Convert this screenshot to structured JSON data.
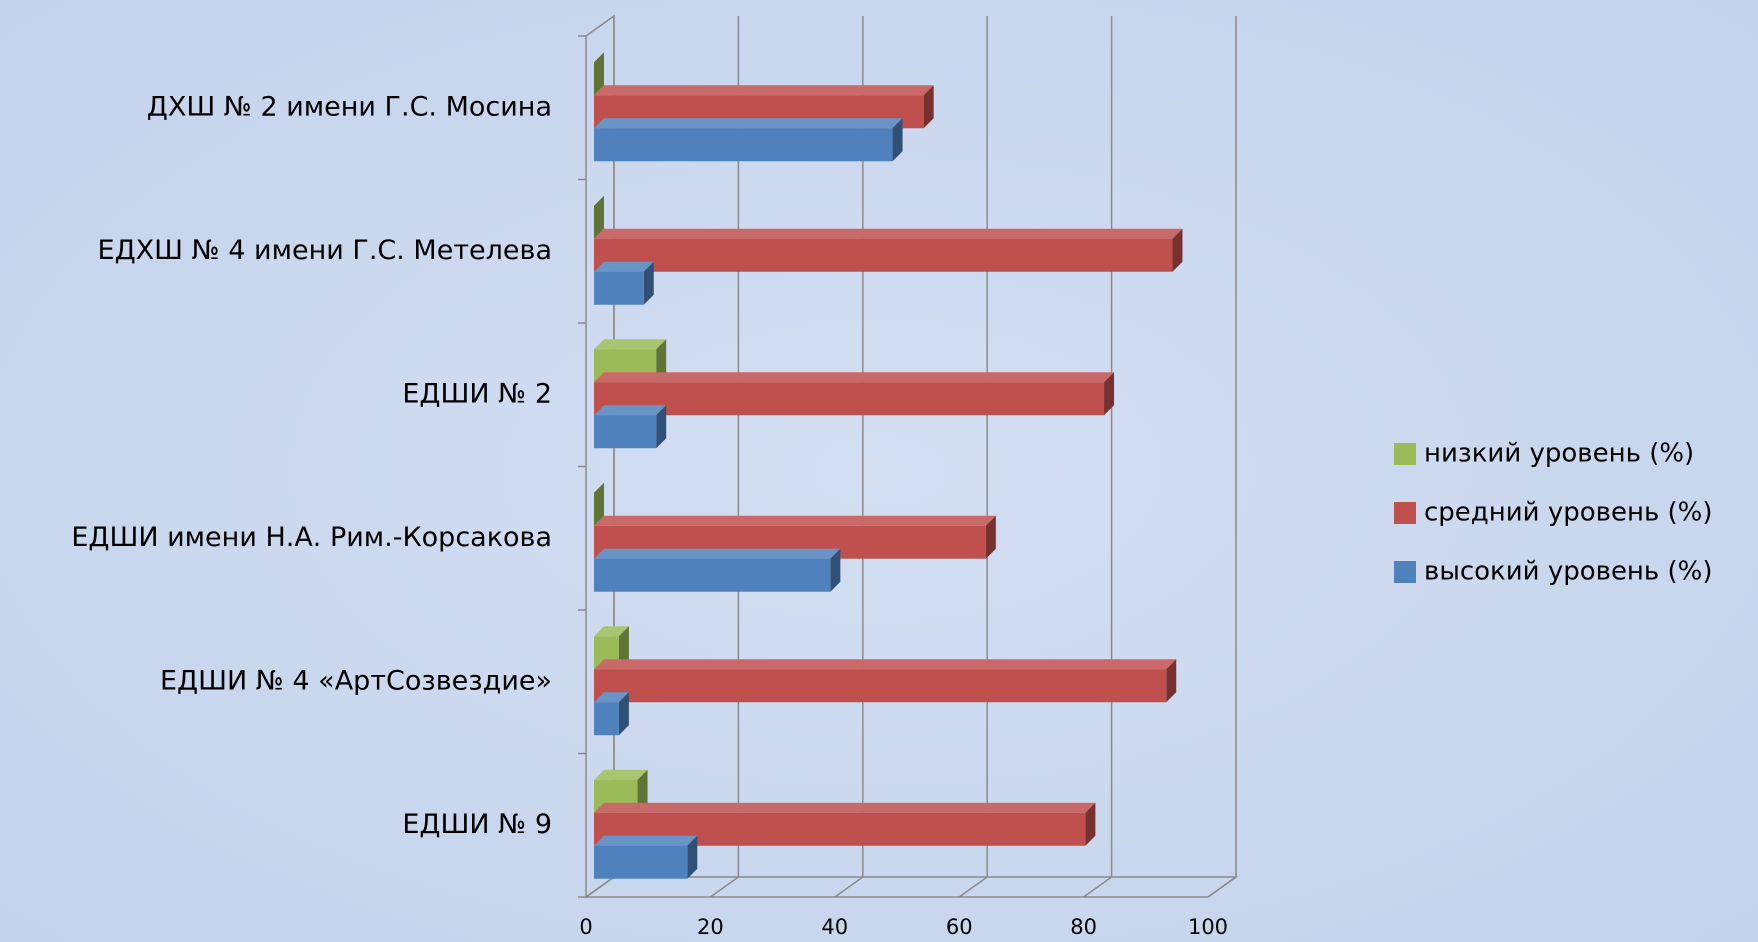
{
  "chart_data": {
    "type": "bar",
    "orientation": "horizontal",
    "categories": [
      "ДХШ № 2 имени Г.С. Мосина",
      "ЕДХШ № 4 имени Г.С. Метелева",
      "ЕДШИ № 2",
      "ЕДШИ имени Н.А. Рим.-Корсакова",
      "ЕДШИ № 4 «АртСозвездие»",
      "ЕДШИ № 9"
    ],
    "series": [
      {
        "name": "низкий уровень (%)",
        "color": "#9bbb59",
        "values": [
          0,
          0,
          10,
          0,
          4,
          7
        ]
      },
      {
        "name": "средний уровень (%)",
        "color": "#c0504d",
        "values": [
          53,
          93,
          82,
          63,
          92,
          79
        ]
      },
      {
        "name": "высокий уровень (%)",
        "color": "#4f81bd",
        "values": [
          48,
          8,
          10,
          38,
          4,
          15
        ]
      }
    ],
    "xlim": [
      0,
      100
    ],
    "xticks": [
      0,
      20,
      40,
      60,
      80,
      100
    ],
    "grid": true,
    "legend": "right"
  }
}
